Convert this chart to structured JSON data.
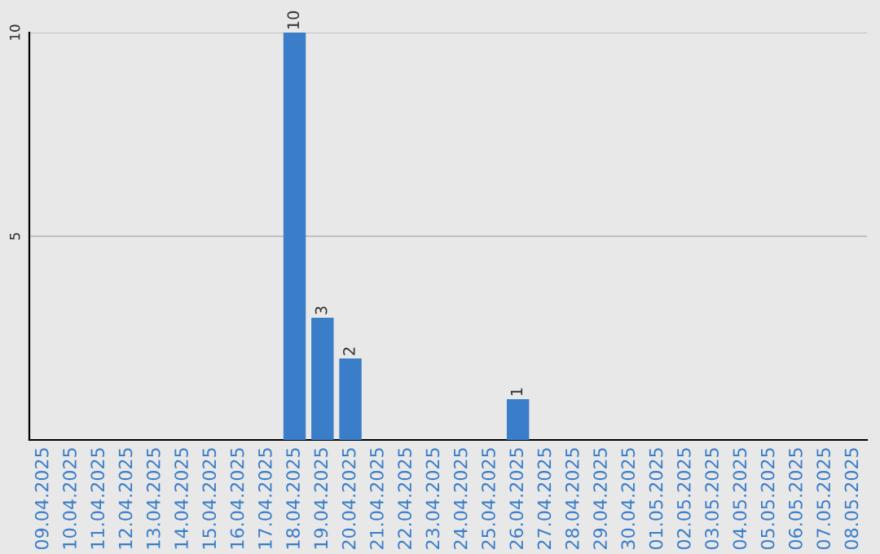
{
  "chart_data": {
    "type": "bar",
    "categories": [
      "09.04.2025",
      "10.04.2025",
      "11.04.2025",
      "12.04.2025",
      "13.04.2025",
      "14.04.2025",
      "15.04.2025",
      "16.04.2025",
      "17.04.2025",
      "18.04.2025",
      "19.04.2025",
      "20.04.2025",
      "21.04.2025",
      "22.04.2025",
      "23.04.2025",
      "24.04.2025",
      "25.04.2025",
      "26.04.2025",
      "27.04.2025",
      "28.04.2025",
      "29.04.2025",
      "30.04.2025",
      "01.05.2025",
      "02.05.2025",
      "03.05.2025",
      "04.05.2025",
      "05.05.2025",
      "06.05.2025",
      "07.05.2025",
      "08.05.2025"
    ],
    "values": [
      0,
      0,
      0,
      0,
      0,
      0,
      0,
      0,
      0,
      10,
      3,
      2,
      0,
      0,
      0,
      0,
      0,
      1,
      0,
      0,
      0,
      0,
      0,
      0,
      0,
      0,
      0,
      0,
      0,
      0
    ],
    "value_labels": [
      null,
      null,
      null,
      null,
      null,
      null,
      null,
      null,
      null,
      "10",
      "3",
      "2",
      null,
      null,
      null,
      null,
      null,
      "1",
      null,
      null,
      null,
      null,
      null,
      null,
      null,
      null,
      null,
      null,
      null,
      null
    ],
    "color": "#3a7dc9",
    "ylim": [
      0,
      10
    ],
    "yticks": [
      5,
      10
    ],
    "grid": "y"
  }
}
